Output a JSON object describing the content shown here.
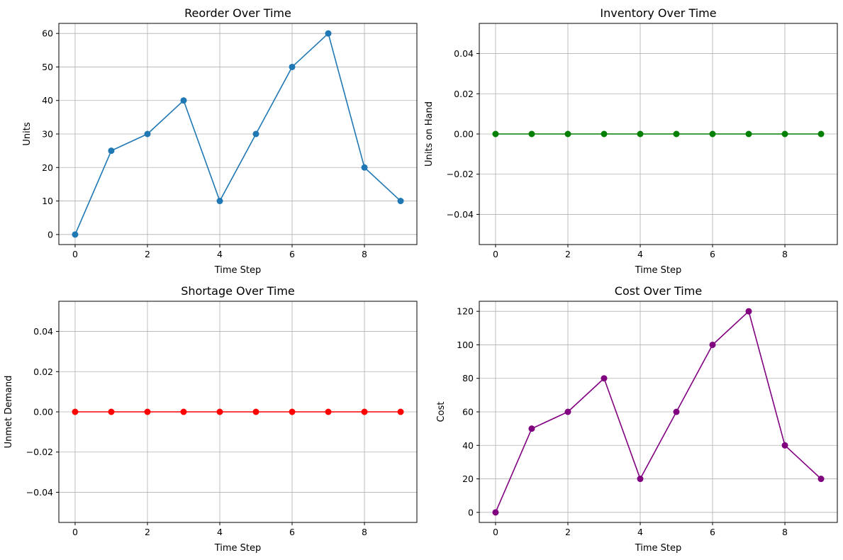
{
  "chart_data": [
    {
      "type": "line",
      "title": "Reorder Over Time",
      "xlabel": "Time Step",
      "ylabel": "Units",
      "color": "#1f77b4",
      "x": [
        0,
        1,
        2,
        3,
        4,
        5,
        6,
        7,
        8,
        9
      ],
      "y": [
        0,
        25,
        30,
        40,
        10,
        30,
        50,
        60,
        20,
        10
      ],
      "xlim": [
        -0.45,
        9.45
      ],
      "ylim": [
        -3,
        63
      ],
      "xticks": [
        0,
        2,
        4,
        6,
        8
      ],
      "xtick_labels": [
        "0",
        "2",
        "4",
        "6",
        "8"
      ],
      "yticks": [
        0,
        10,
        20,
        30,
        40,
        50,
        60
      ],
      "ytick_labels": [
        "0",
        "10",
        "20",
        "30",
        "40",
        "50",
        "60"
      ],
      "grid": true,
      "marker": "circle"
    },
    {
      "type": "line",
      "title": "Inventory Over Time",
      "xlabel": "Time Step",
      "ylabel": "Units on Hand",
      "color": "#008000",
      "x": [
        0,
        1,
        2,
        3,
        4,
        5,
        6,
        7,
        8,
        9
      ],
      "y": [
        0,
        0,
        0,
        0,
        0,
        0,
        0,
        0,
        0,
        0
      ],
      "xlim": [
        -0.45,
        9.45
      ],
      "ylim": [
        -0.055,
        0.055
      ],
      "xticks": [
        0,
        2,
        4,
        6,
        8
      ],
      "xtick_labels": [
        "0",
        "2",
        "4",
        "6",
        "8"
      ],
      "yticks": [
        -0.04,
        -0.02,
        0,
        0.02,
        0.04
      ],
      "ytick_labels": [
        "−0.04",
        "−0.02",
        "0.00",
        "0.02",
        "0.04"
      ],
      "grid": true,
      "marker": "circle"
    },
    {
      "type": "line",
      "title": "Shortage Over Time",
      "xlabel": "Time Step",
      "ylabel": "Unmet Demand",
      "color": "#ff0000",
      "x": [
        0,
        1,
        2,
        3,
        4,
        5,
        6,
        7,
        8,
        9
      ],
      "y": [
        0,
        0,
        0,
        0,
        0,
        0,
        0,
        0,
        0,
        0
      ],
      "xlim": [
        -0.45,
        9.45
      ],
      "ylim": [
        -0.055,
        0.055
      ],
      "xticks": [
        0,
        2,
        4,
        6,
        8
      ],
      "xtick_labels": [
        "0",
        "2",
        "4",
        "6",
        "8"
      ],
      "yticks": [
        -0.04,
        -0.02,
        0,
        0.02,
        0.04
      ],
      "ytick_labels": [
        "−0.04",
        "−0.02",
        "0.00",
        "0.02",
        "0.04"
      ],
      "grid": true,
      "marker": "circle"
    },
    {
      "type": "line",
      "title": "Cost Over Time",
      "xlabel": "Time Step",
      "ylabel": "Cost",
      "color": "#800080",
      "x": [
        0,
        1,
        2,
        3,
        4,
        5,
        6,
        7,
        8,
        9
      ],
      "y": [
        0,
        50,
        60,
        80,
        20,
        60,
        100,
        120,
        40,
        20
      ],
      "xlim": [
        -0.45,
        9.45
      ],
      "ylim": [
        -6,
        126
      ],
      "xticks": [
        0,
        2,
        4,
        6,
        8
      ],
      "xtick_labels": [
        "0",
        "2",
        "4",
        "6",
        "8"
      ],
      "yticks": [
        0,
        20,
        40,
        60,
        80,
        100,
        120
      ],
      "ytick_labels": [
        "0",
        "20",
        "40",
        "60",
        "80",
        "100",
        "120"
      ],
      "grid": true,
      "marker": "circle"
    }
  ]
}
